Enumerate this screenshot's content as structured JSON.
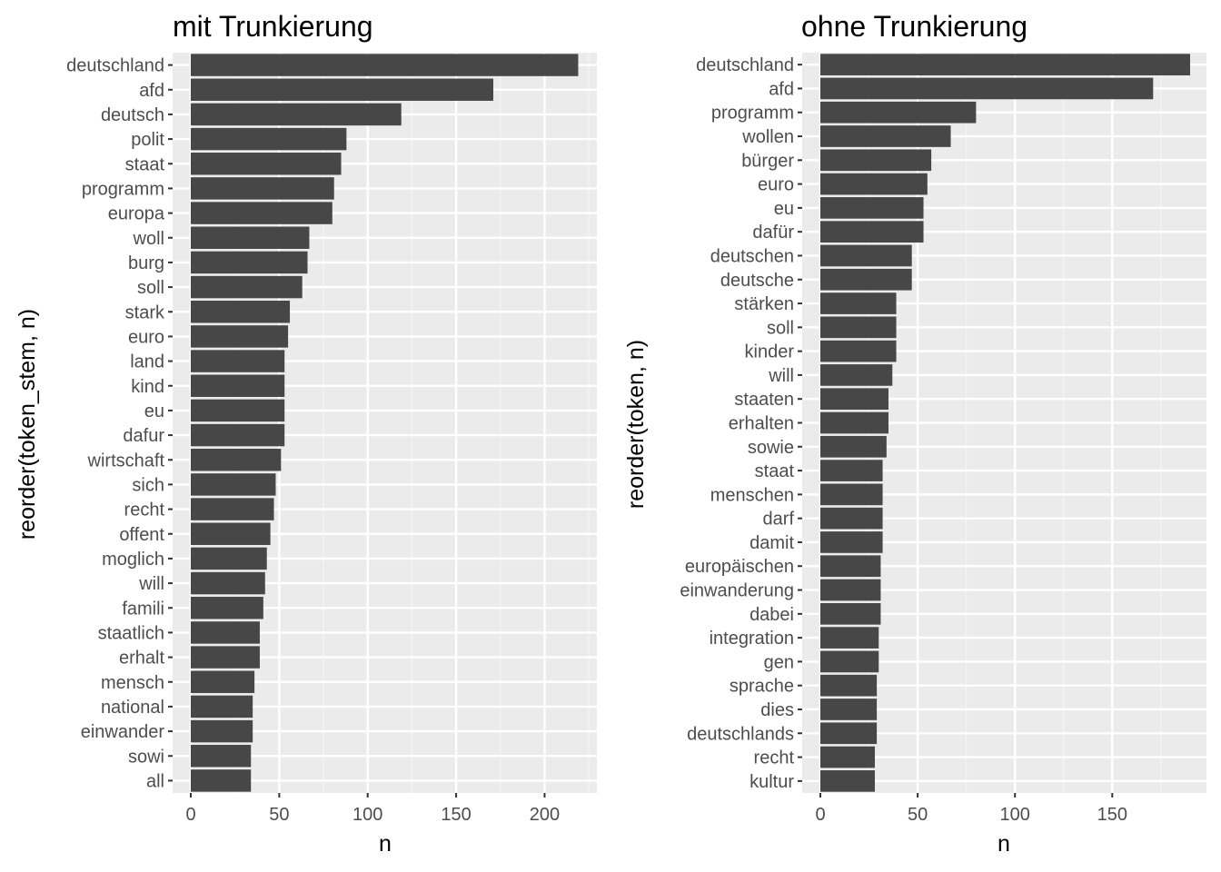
{
  "chart_data": [
    {
      "type": "bar",
      "orientation": "horizontal",
      "title": "mit Trunkierung",
      "xlabel": "n",
      "ylabel": "reorder(token_stem, n)",
      "xlim": [
        -11,
        230
      ],
      "xticks": [
        0,
        50,
        100,
        150,
        200
      ],
      "grid": true,
      "bar_color": "#474747",
      "panel_color": "#ebebeb",
      "categories": [
        "deutschland",
        "afd",
        "deutsch",
        "polit",
        "staat",
        "programm",
        "europa",
        "woll",
        "burg",
        "soll",
        "stark",
        "euro",
        "land",
        "kind",
        "eu",
        "dafur",
        "wirtschaft",
        "sich",
        "recht",
        "offent",
        "moglich",
        "will",
        "famili",
        "staatlich",
        "erhalt",
        "mensch",
        "national",
        "einwander",
        "sowi",
        "all"
      ],
      "values": [
        219,
        171,
        119,
        88,
        85,
        81,
        80,
        67,
        66,
        63,
        56,
        55,
        53,
        53,
        53,
        53,
        51,
        48,
        47,
        45,
        43,
        42,
        41,
        39,
        39,
        36,
        35,
        35,
        34,
        34
      ]
    },
    {
      "type": "bar",
      "orientation": "horizontal",
      "title": "ohne Trunkierung",
      "xlabel": "n",
      "ylabel": "reorder(token, n)",
      "xlim": [
        -9.5,
        199
      ],
      "xticks": [
        0,
        50,
        100,
        150
      ],
      "grid": true,
      "bar_color": "#474747",
      "panel_color": "#ebebeb",
      "categories": [
        "deutschland",
        "afd",
        "programm",
        "wollen",
        "bürger",
        "euro",
        "eu",
        "dafür",
        "deutschen",
        "deutsche",
        "stärken",
        "soll",
        "kinder",
        "will",
        "staaten",
        "erhalten",
        "sowie",
        "staat",
        "menschen",
        "darf",
        "damit",
        "europäischen",
        "einwanderung",
        "dabei",
        "integration",
        "gen",
        "sprache",
        "dies",
        "deutschlands",
        "recht",
        "kultur"
      ],
      "values": [
        190,
        171,
        80,
        67,
        57,
        55,
        53,
        53,
        47,
        47,
        39,
        39,
        39,
        37,
        35,
        35,
        34,
        32,
        32,
        32,
        32,
        31,
        31,
        31,
        30,
        30,
        29,
        29,
        29,
        28,
        28
      ]
    }
  ]
}
